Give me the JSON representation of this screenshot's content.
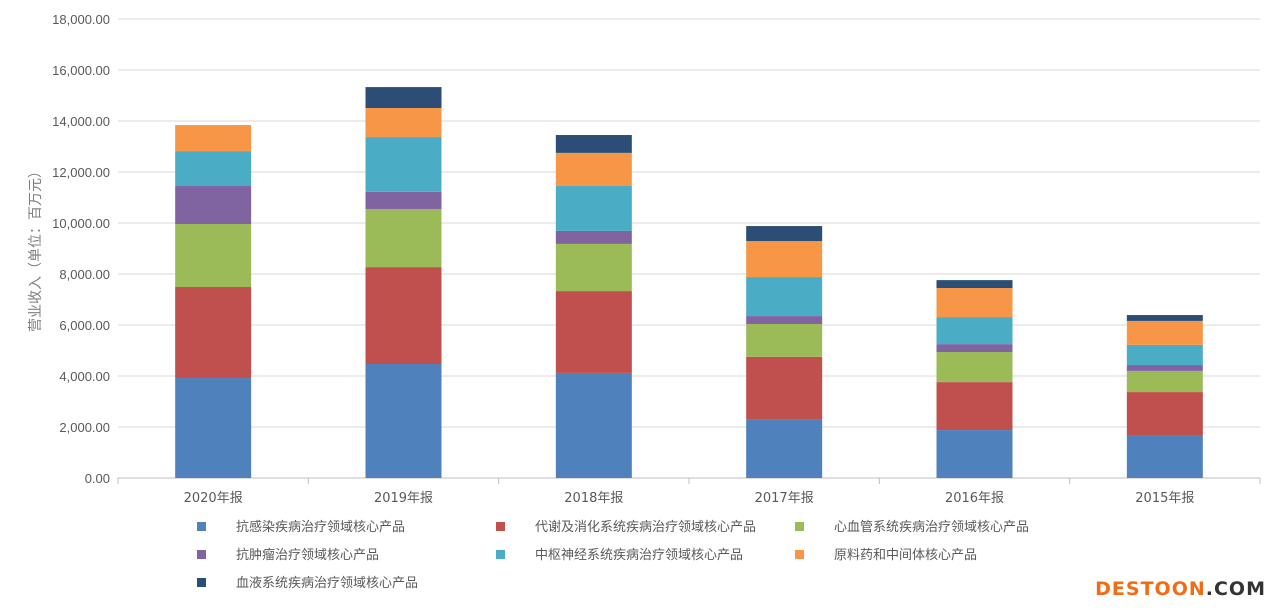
{
  "chart_data": {
    "type": "bar",
    "stacked": true,
    "ylabel": "营业收入（单位：百万元）",
    "ylim": [
      0,
      18000
    ],
    "yticks": [
      "0.00",
      "2,000.00",
      "4,000.00",
      "6,000.00",
      "8,000.00",
      "10,000.00",
      "12,000.00",
      "14,000.00",
      "16,000.00",
      "18,000.00"
    ],
    "grid": true,
    "legend_position": "bottom",
    "categories": [
      "2020年报",
      "2019年报",
      "2018年报",
      "2017年报",
      "2016年报",
      "2015年报"
    ],
    "series": [
      {
        "name": "抗感染疾病治疗领域核心产品",
        "color": "#4f81bd",
        "values": [
          3920,
          4470,
          4120,
          2310,
          1880,
          1650
        ]
      },
      {
        "name": "代谢及消化系统疾病治疗领域核心产品",
        "color": "#c0504d",
        "values": [
          3570,
          3800,
          3210,
          2440,
          1880,
          1720
        ]
      },
      {
        "name": "心血管系统疾病治疗领域核心产品",
        "color": "#9bbb59",
        "values": [
          2470,
          2280,
          1850,
          1290,
          1180,
          830
        ]
      },
      {
        "name": "抗肿瘤治疗领域核心产品",
        "color": "#8064a2",
        "values": [
          1490,
          670,
          510,
          310,
          310,
          230
        ]
      },
      {
        "name": "中枢神经系统疾病治疗领域核心产品",
        "color": "#4bacc6",
        "values": [
          1370,
          2150,
          1760,
          1530,
          1060,
          790
        ]
      },
      {
        "name": "原料药和中间体核心产品",
        "color": "#f79646",
        "values": [
          1020,
          1140,
          1300,
          1410,
          1140,
          940
        ]
      },
      {
        "name": "血液系统疾病治疗领域核心产品",
        "color": "#2c4d75",
        "values": [
          0,
          820,
          700,
          590,
          310,
          230
        ]
      }
    ]
  },
  "watermark": {
    "part1": "DESTOON",
    "part2": ".COM"
  }
}
